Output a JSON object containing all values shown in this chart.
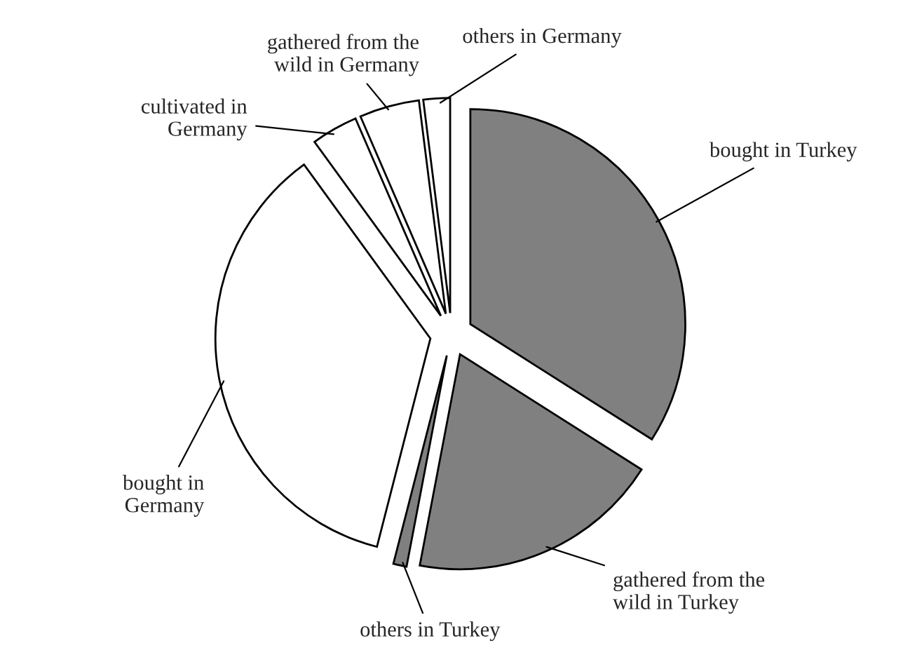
{
  "chart_data": {
    "type": "pie",
    "categories": [
      "bought in Turkey",
      "gathered from the\nwild in Turkey",
      "others in Turkey",
      "bought in\nGermany",
      "cultivated in\nGermany",
      "gathered from the\nwild in Germany",
      "others in Germany"
    ],
    "values": [
      34,
      19,
      1,
      36,
      3.5,
      4.5,
      2
    ],
    "colors": [
      "#808080",
      "#808080",
      "#808080",
      "#ffffff",
      "#ffffff",
      "#ffffff",
      "#ffffff"
    ]
  }
}
